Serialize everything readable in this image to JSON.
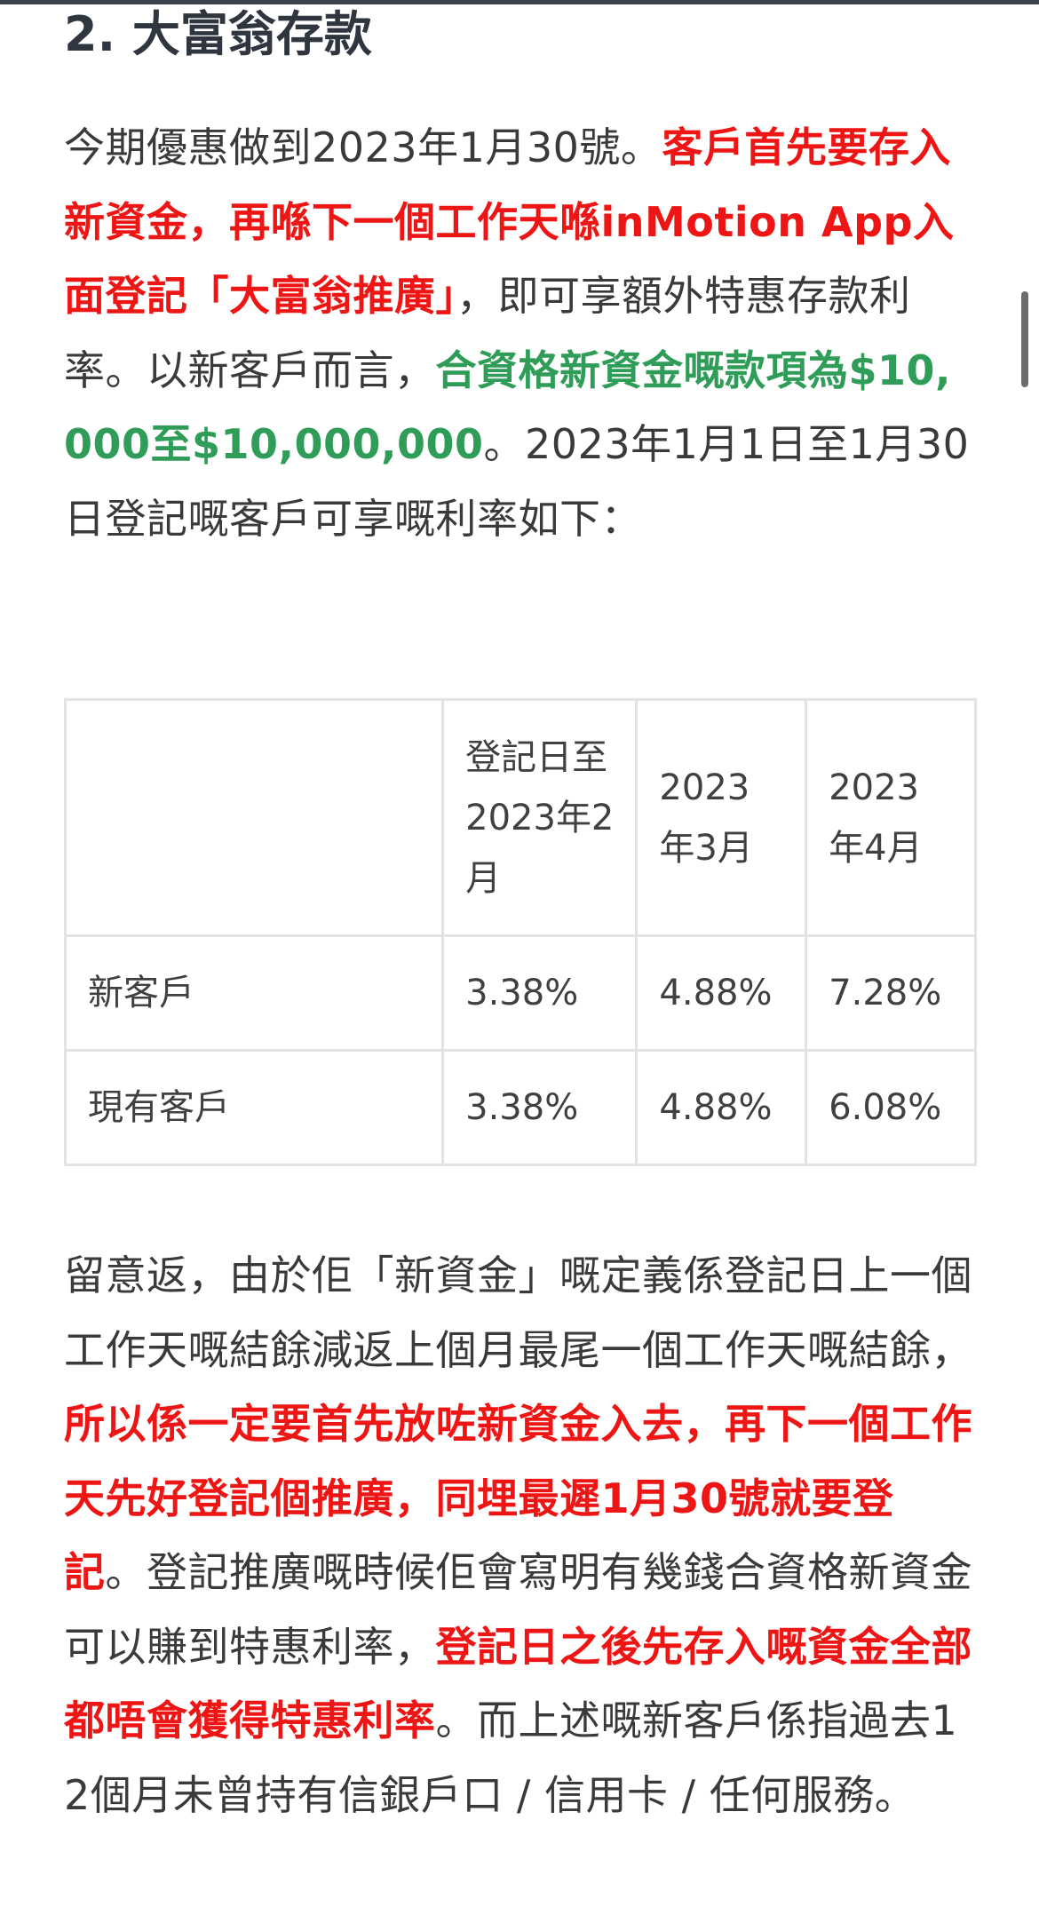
{
  "heading": "2. 大富翁存款",
  "paragraph1": [
    {
      "text": "今期優惠做到2023年1月30號。",
      "style": "normal"
    },
    {
      "text": "客戶首先要存入新資金，再喺下一個工作天喺inMotion App入面登記「大富翁推廣」",
      "style": "red"
    },
    {
      "text": "，即可享額外特惠存款利率。以新客戶而言，",
      "style": "normal"
    },
    {
      "text": "合資格新資金嘅款項為$10,000至$10,000,000",
      "style": "green"
    },
    {
      "text": "。2023年1月1日至1月30日登記嘅客戶可享嘅利率如下：",
      "style": "normal"
    }
  ],
  "table": {
    "headers": [
      "",
      "登記日至2023年2月",
      "2023年3月",
      "2023年4月"
    ],
    "rows": [
      [
        "新客戶",
        "3.38%",
        "4.88%",
        "7.28%"
      ],
      [
        "現有客戶",
        "3.38%",
        "4.88%",
        "6.08%"
      ]
    ]
  },
  "paragraph2": [
    {
      "text": "留意返，由於佢「新資金」嘅定義係登記日上一個工作天嘅結餘減返上個月最尾一個工作天嘅結餘，",
      "style": "normal"
    },
    {
      "text": "所以係一定要首先放咗新資金入去，再下一個工作天先好登記個推廣，同埋最遲1月30號就要登記",
      "style": "red"
    },
    {
      "text": "。登記推廣嘅時候佢會寫明有幾錢合資格新資金可以賺到特惠利率，",
      "style": "normal"
    },
    {
      "text": "登記日之後先存入嘅資金全部都唔會獲得特惠利率",
      "style": "red"
    },
    {
      "text": "。而上述嘅新客戶係指過去12個月未曾持有信銀戶口 / 信用卡 / 任何服務。",
      "style": "normal"
    }
  ],
  "colors": {
    "highlight_red": "#ee1515",
    "highlight_green": "#2f9d58",
    "body_text": "#3a3a3a",
    "heading_text": "#2f3640"
  }
}
